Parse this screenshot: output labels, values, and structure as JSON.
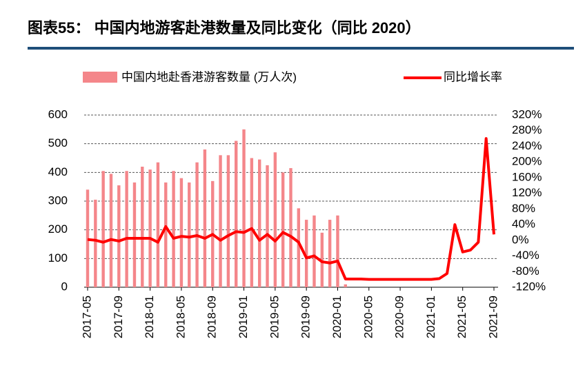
{
  "chart_data": {
    "type": "combo",
    "title": "图表55： 中国内地游客赴港数量及同比变化（同比 2020）",
    "categories": [
      "2017-05",
      null,
      null,
      null,
      "2017-09",
      null,
      null,
      null,
      "2018-01",
      null,
      null,
      null,
      "2018-05",
      null,
      null,
      null,
      "2018-09",
      null,
      null,
      null,
      "2019-01",
      null,
      null,
      null,
      "2019-05",
      null,
      null,
      null,
      "2019-09",
      null,
      null,
      null,
      "2020-01",
      null,
      null,
      null,
      "2020-05",
      null,
      null,
      null,
      "2020-09",
      null,
      null,
      null,
      "2021-01",
      null,
      null,
      null,
      "2021-05",
      null,
      null,
      null,
      "2021-09"
    ],
    "series": [
      {
        "name": "中国内地赴香港游客数量 (万人次)",
        "type": "bar",
        "color": "#f4868a",
        "axis": "y",
        "values": [
          340,
          305,
          405,
          395,
          355,
          405,
          365,
          420,
          410,
          435,
          365,
          405,
          380,
          365,
          435,
          480,
          370,
          460,
          460,
          510,
          550,
          450,
          445,
          425,
          470,
          400,
          415,
          275,
          235,
          250,
          190,
          235,
          250,
          10,
          0,
          0,
          0,
          0,
          0,
          0,
          0,
          0,
          0,
          0,
          0,
          0,
          0,
          0,
          0,
          0,
          0,
          0,
          0
        ]
      },
      {
        "name": "同比增长率",
        "type": "line",
        "color": "#ff0000",
        "axis": "y2",
        "values": [
          2,
          0,
          -5,
          2,
          -2,
          5,
          5,
          5,
          5,
          -5,
          35,
          5,
          10,
          8,
          12,
          5,
          15,
          0,
          12,
          22,
          20,
          30,
          0,
          15,
          -2,
          20,
          10,
          -5,
          -45,
          -40,
          -55,
          -58,
          -53,
          -99,
          -99,
          -99,
          -100,
          -100,
          -100,
          -100,
          -100,
          -100,
          -100,
          -100,
          -100,
          -98,
          -85,
          40,
          -30,
          -25,
          -5,
          260,
          15
        ]
      }
    ],
    "ylim": [
      0,
      600
    ],
    "yticks": [
      0,
      100,
      200,
      300,
      400,
      500,
      600
    ],
    "y2lim": [
      -120,
      320
    ],
    "y2ticks": [
      {
        "value": -120,
        "label": "-120%"
      },
      {
        "value": -80,
        "label": "-80%"
      },
      {
        "value": -40,
        "label": "-40%"
      },
      {
        "value": 0,
        "label": "0%"
      },
      {
        "value": 40,
        "label": "40%"
      },
      {
        "value": 80,
        "label": "80%"
      },
      {
        "value": 120,
        "label": "120%"
      },
      {
        "value": 160,
        "label": "160%"
      },
      {
        "value": 200,
        "label": "200%"
      },
      {
        "value": 240,
        "label": "240%"
      },
      {
        "value": 280,
        "label": "280%"
      },
      {
        "value": 320,
        "label": "320%"
      }
    ],
    "grid": true
  }
}
